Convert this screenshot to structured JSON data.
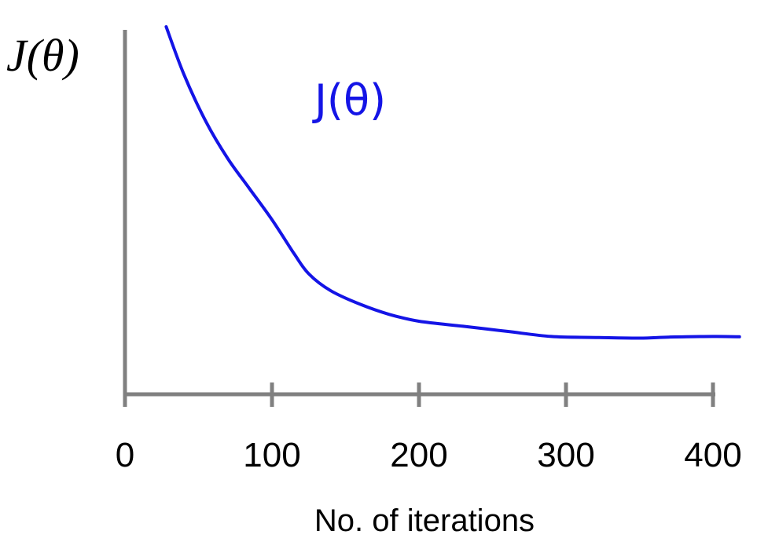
{
  "chart_data": {
    "type": "line",
    "ylabel": "J(θ)",
    "xlabel": "No. of iterations",
    "annotation": "J(θ)",
    "xlim": [
      0,
      400
    ],
    "ylim": [
      0,
      100
    ],
    "xticks": [
      0,
      100,
      200,
      300,
      400
    ],
    "yticks_labeled": false,
    "grid": false,
    "legend": "none",
    "series": [
      {
        "color": "#1414e6",
        "x": [
          28,
          40,
          55,
          70,
          85,
          100,
          115,
          125,
          140,
          160,
          180,
          200,
          230,
          260,
          290,
          320,
          350,
          370,
          400,
          418
        ],
        "y": [
          100,
          86,
          72,
          61,
          52,
          43,
          33,
          27,
          22,
          18,
          15,
          13,
          11.5,
          10,
          8.5,
          8.2,
          8,
          8.3,
          8.5,
          8.4
        ]
      }
    ]
  }
}
